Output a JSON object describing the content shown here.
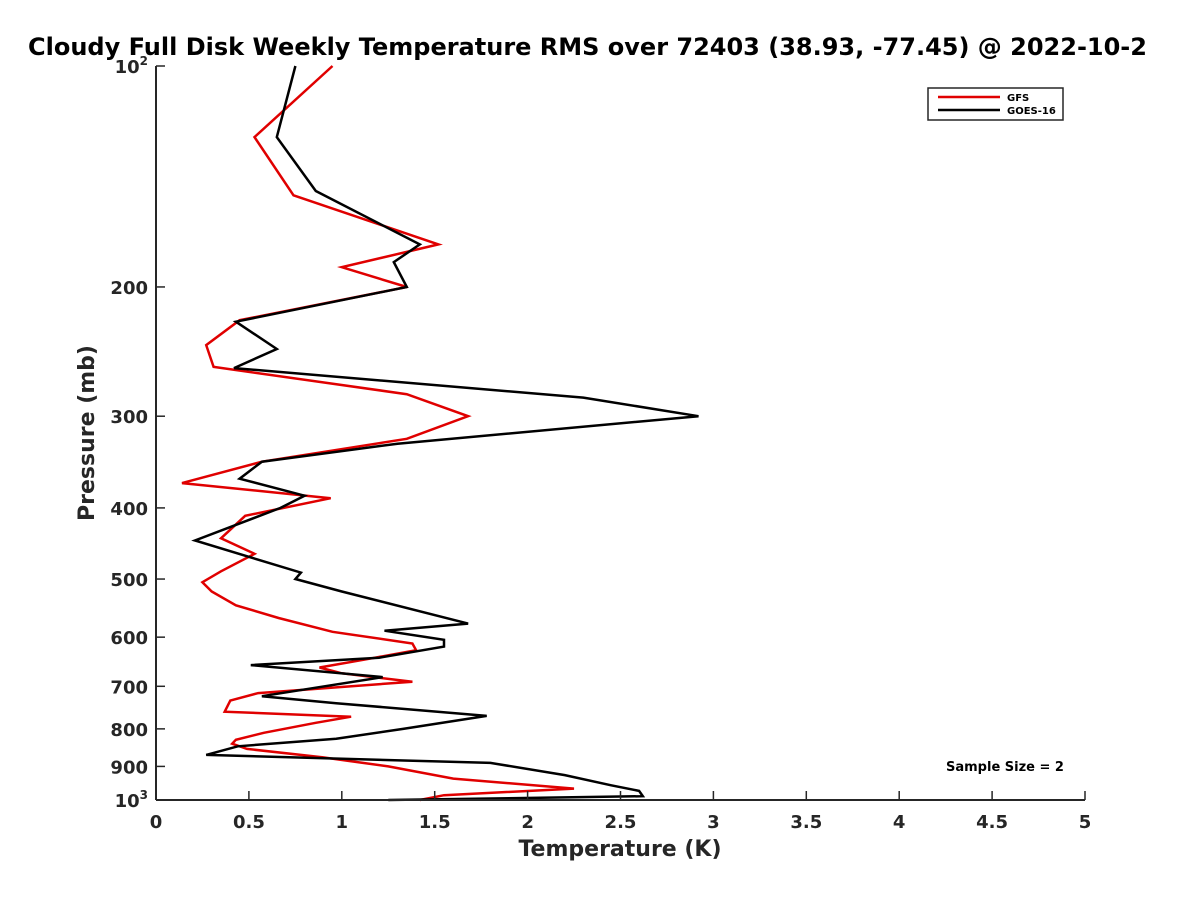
{
  "chart_data": {
    "type": "line",
    "title": "Cloudy Full Disk Weekly Temperature RMS over 72403 (38.93, -77.45) @ 2022-10-2",
    "xlabel": "Temperature (K)",
    "ylabel": "Pressure (mb)",
    "xlim": [
      0,
      5
    ],
    "ylim": [
      100,
      1000
    ],
    "y_scale": "log",
    "y_reversed": true,
    "grid": false,
    "legend_position": "top-right",
    "x_ticks": [
      "0",
      "0.5",
      "1",
      "1.5",
      "2",
      "2.5",
      "3",
      "3.5",
      "4",
      "4.5",
      "5"
    ],
    "x_tick_values": [
      0,
      0.5,
      1,
      1.5,
      2,
      2.5,
      3,
      3.5,
      4,
      4.5,
      5
    ],
    "y_ticks": [
      {
        "value": 100,
        "base": "10",
        "exp": "2"
      },
      {
        "value": 200,
        "label": "200"
      },
      {
        "value": 300,
        "label": "300"
      },
      {
        "value": 400,
        "label": "400"
      },
      {
        "value": 500,
        "label": "500"
      },
      {
        "value": 600,
        "label": "600"
      },
      {
        "value": 700,
        "label": "700"
      },
      {
        "value": 800,
        "label": "800"
      },
      {
        "value": 900,
        "label": "900"
      },
      {
        "value": 1000,
        "base": "10",
        "exp": "3"
      }
    ],
    "series": [
      {
        "name": "GFS",
        "color": "#e00000",
        "points": [
          [
            0.95,
            100
          ],
          [
            0.53,
            125
          ],
          [
            0.74,
            150
          ],
          [
            1.52,
            175
          ],
          [
            1.0,
            188
          ],
          [
            1.35,
            200
          ],
          [
            0.45,
            222
          ],
          [
            0.27,
            240
          ],
          [
            0.31,
            257
          ],
          [
            1.35,
            280
          ],
          [
            1.68,
            300
          ],
          [
            1.35,
            322
          ],
          [
            0.57,
            346
          ],
          [
            0.14,
            370
          ],
          [
            0.94,
            388
          ],
          [
            0.48,
            410
          ],
          [
            0.35,
            440
          ],
          [
            0.53,
            462
          ],
          [
            0.35,
            488
          ],
          [
            0.25,
            505
          ],
          [
            0.3,
            520
          ],
          [
            0.43,
            543
          ],
          [
            0.66,
            565
          ],
          [
            0.95,
            590
          ],
          [
            1.38,
            612
          ],
          [
            1.4,
            625
          ],
          [
            1.15,
            642
          ],
          [
            0.88,
            660
          ],
          [
            1.0,
            672
          ],
          [
            1.38,
            690
          ],
          [
            0.55,
            715
          ],
          [
            0.4,
            732
          ],
          [
            0.37,
            758
          ],
          [
            1.05,
            770
          ],
          [
            0.86,
            785
          ],
          [
            0.58,
            810
          ],
          [
            0.43,
            828
          ],
          [
            0.41,
            838
          ],
          [
            0.49,
            852
          ],
          [
            0.9,
            875
          ],
          [
            1.25,
            900
          ],
          [
            1.6,
            935
          ],
          [
            2.25,
            965
          ],
          [
            1.55,
            985
          ],
          [
            1.42,
            1000
          ]
        ]
      },
      {
        "name": "GOES-16",
        "color": "#000000",
        "points": [
          [
            0.75,
            100
          ],
          [
            0.65,
            125
          ],
          [
            0.86,
            148
          ],
          [
            1.42,
            175
          ],
          [
            1.28,
            185
          ],
          [
            1.35,
            200
          ],
          [
            0.43,
            223
          ],
          [
            0.65,
            243
          ],
          [
            0.42,
            258
          ],
          [
            2.3,
            283
          ],
          [
            2.92,
            300
          ],
          [
            1.3,
            327
          ],
          [
            0.57,
            346
          ],
          [
            0.45,
            365
          ],
          [
            0.8,
            385
          ],
          [
            0.67,
            400
          ],
          [
            0.21,
            443
          ],
          [
            0.78,
            490
          ],
          [
            0.75,
            500
          ],
          [
            1.0,
            520
          ],
          [
            1.68,
            575
          ],
          [
            1.23,
            588
          ],
          [
            1.55,
            605
          ],
          [
            1.55,
            618
          ],
          [
            1.2,
            640
          ],
          [
            0.51,
            655
          ],
          [
            1.22,
            680
          ],
          [
            0.57,
            722
          ],
          [
            0.97,
            738
          ],
          [
            1.78,
            768
          ],
          [
            1.33,
            800
          ],
          [
            0.97,
            825
          ],
          [
            0.44,
            845
          ],
          [
            0.27,
            868
          ],
          [
            1.8,
            890
          ],
          [
            2.2,
            925
          ],
          [
            2.45,
            955
          ],
          [
            2.6,
            972
          ],
          [
            2.62,
            988
          ],
          [
            1.25,
            1000
          ]
        ]
      }
    ],
    "annotation": "Sample Size = 2"
  }
}
